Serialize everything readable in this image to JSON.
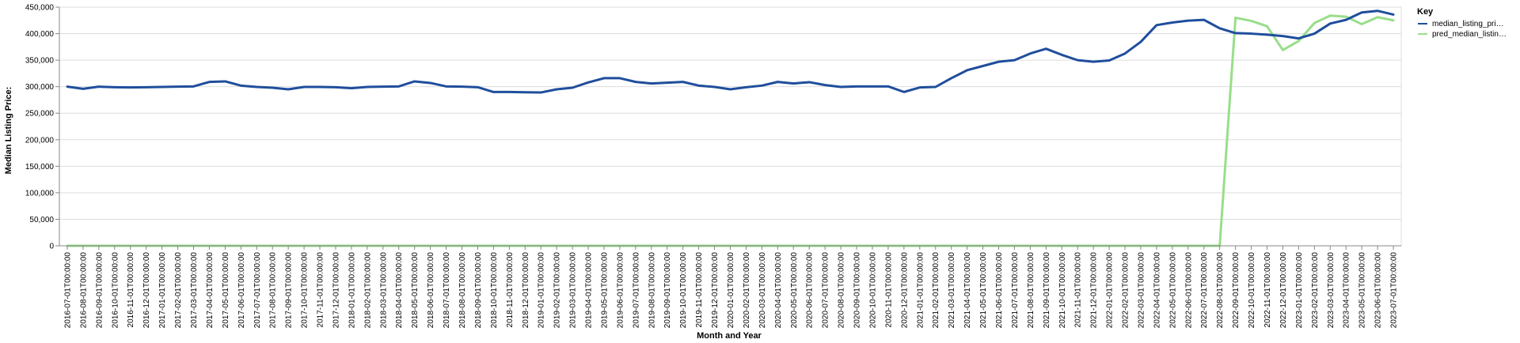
{
  "chart_data": {
    "type": "line",
    "xlabel": "Month and Year",
    "ylabel": "Median Listing Price:",
    "ylim": [
      0,
      450000
    ],
    "yticks": [
      0,
      50000,
      100000,
      150000,
      200000,
      250000,
      300000,
      350000,
      400000,
      450000
    ],
    "ytick_labels": [
      "0",
      "50,000",
      "100,000",
      "150,000",
      "200,000",
      "250,000",
      "300,000",
      "350,000",
      "400,000",
      "450,000"
    ],
    "grid": true,
    "legend": {
      "title": "Key",
      "placement": "right"
    },
    "x": [
      "2016-07-01T00:00:00",
      "2016-08-01T00:00:00",
      "2016-09-01T00:00:00",
      "2016-10-01T00:00:00",
      "2016-11-01T00:00:00",
      "2016-12-01T00:00:00",
      "2017-01-01T00:00:00",
      "2017-02-01T00:00:00",
      "2017-03-01T00:00:00",
      "2017-04-01T00:00:00",
      "2017-05-01T00:00:00",
      "2017-06-01T00:00:00",
      "2017-07-01T00:00:00",
      "2017-08-01T00:00:00",
      "2017-09-01T00:00:00",
      "2017-10-01T00:00:00",
      "2017-11-01T00:00:00",
      "2017-12-01T00:00:00",
      "2018-01-01T00:00:00",
      "2018-02-01T00:00:00",
      "2018-03-01T00:00:00",
      "2018-04-01T00:00:00",
      "2018-05-01T00:00:00",
      "2018-06-01T00:00:00",
      "2018-07-01T00:00:00",
      "2018-08-01T00:00:00",
      "2018-09-01T00:00:00",
      "2018-10-01T00:00:00",
      "2018-11-01T00:00:00",
      "2018-12-01T00:00:00",
      "2019-01-01T00:00:00",
      "2019-02-01T00:00:00",
      "2019-03-01T00:00:00",
      "2019-04-01T00:00:00",
      "2019-05-01T00:00:00",
      "2019-06-01T00:00:00",
      "2019-07-01T00:00:00",
      "2019-08-01T00:00:00",
      "2019-09-01T00:00:00",
      "2019-10-01T00:00:00",
      "2019-11-01T00:00:00",
      "2019-12-01T00:00:00",
      "2020-01-01T00:00:00",
      "2020-02-01T00:00:00",
      "2020-03-01T00:00:00",
      "2020-04-01T00:00:00",
      "2020-05-01T00:00:00",
      "2020-06-01T00:00:00",
      "2020-07-01T00:00:00",
      "2020-08-01T00:00:00",
      "2020-09-01T00:00:00",
      "2020-10-01T00:00:00",
      "2020-11-01T00:00:00",
      "2020-12-01T00:00:00",
      "2021-01-01T00:00:00",
      "2021-02-01T00:00:00",
      "2021-03-01T00:00:00",
      "2021-04-01T00:00:00",
      "2021-05-01T00:00:00",
      "2021-06-01T00:00:00",
      "2021-07-01T00:00:00",
      "2021-08-01T00:00:00",
      "2021-09-01T00:00:00",
      "2021-10-01T00:00:00",
      "2021-11-01T00:00:00",
      "2021-12-01T00:00:00",
      "2022-01-01T00:00:00",
      "2022-02-01T00:00:00",
      "2022-03-01T00:00:00",
      "2022-04-01T00:00:00",
      "2022-05-01T00:00:00",
      "2022-06-01T00:00:00",
      "2022-07-01T00:00:00",
      "2022-08-01T00:00:00",
      "2022-09-01T00:00:00",
      "2022-10-01T00:00:00",
      "2022-11-01T00:00:00",
      "2022-12-01T00:00:00",
      "2023-01-01T00:00:00",
      "2023-02-01T00:00:00",
      "2023-03-01T00:00:00",
      "2023-04-01T00:00:00",
      "2023-05-01T00:00:00",
      "2023-06-01T00:00:00",
      "2023-07-01T00:00:00"
    ],
    "series": [
      {
        "name": "median_listing_pri…",
        "color": "#1f4e9c",
        "values": [
          300000,
          296000,
          300000,
          299000,
          298500,
          299000,
          299500,
          300000,
          300500,
          309000,
          310000,
          302000,
          299500,
          298000,
          295000,
          299500,
          299500,
          299000,
          297000,
          299500,
          300000,
          300500,
          310000,
          307000,
          300500,
          300000,
          299000,
          290000,
          290000,
          289500,
          289000,
          295000,
          298000,
          308000,
          316000,
          316000,
          309000,
          306000,
          307500,
          309000,
          302000,
          299500,
          295000,
          299000,
          302000,
          309000,
          306000,
          308500,
          303000,
          299500,
          300500,
          300500,
          300500,
          290000,
          298500,
          299500,
          316000,
          331000,
          339000,
          347000,
          350000,
          362500,
          371500,
          360000,
          350000,
          347000,
          349500,
          362500,
          384500,
          416000,
          421000,
          424500,
          426000,
          410000,
          401000,
          400000,
          398000,
          395500,
          391000,
          400000,
          419000,
          426000,
          440000,
          443000,
          436000
        ]
      },
      {
        "name": "pred_median_listin…",
        "color": "#98de8a",
        "values": [
          0,
          0,
          0,
          0,
          0,
          0,
          0,
          0,
          0,
          0,
          0,
          0,
          0,
          0,
          0,
          0,
          0,
          0,
          0,
          0,
          0,
          0,
          0,
          0,
          0,
          0,
          0,
          0,
          0,
          0,
          0,
          0,
          0,
          0,
          0,
          0,
          0,
          0,
          0,
          0,
          0,
          0,
          0,
          0,
          0,
          0,
          0,
          0,
          0,
          0,
          0,
          0,
          0,
          0,
          0,
          0,
          0,
          0,
          0,
          0,
          0,
          0,
          0,
          0,
          0,
          0,
          0,
          0,
          0,
          0,
          0,
          0,
          0,
          0,
          430000,
          424000,
          414000,
          369000,
          386000,
          420000,
          434000,
          432000,
          418000,
          431000,
          425000
        ]
      }
    ]
  },
  "colors": {
    "grid": "#dddddd",
    "axis": "#888888"
  }
}
